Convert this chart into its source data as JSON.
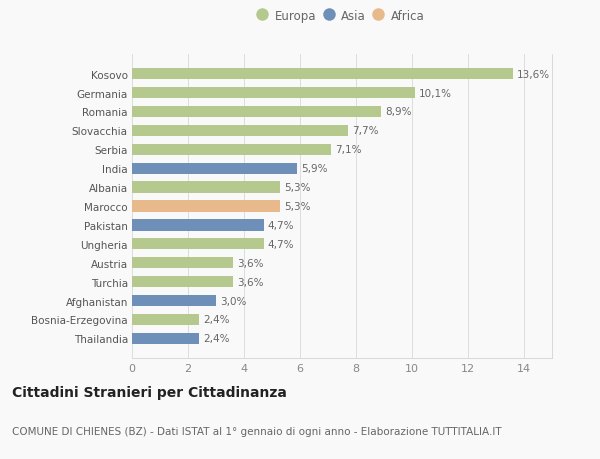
{
  "categories": [
    "Thailandia",
    "Bosnia-Erzegovina",
    "Afghanistan",
    "Turchia",
    "Austria",
    "Ungheria",
    "Pakistan",
    "Marocco",
    "Albania",
    "India",
    "Serbia",
    "Slovacchia",
    "Romania",
    "Germania",
    "Kosovo"
  ],
  "values": [
    2.4,
    2.4,
    3.0,
    3.6,
    3.6,
    4.7,
    4.7,
    5.3,
    5.3,
    5.9,
    7.1,
    7.7,
    8.9,
    10.1,
    13.6
  ],
  "labels": [
    "2,4%",
    "2,4%",
    "3,0%",
    "3,6%",
    "3,6%",
    "4,7%",
    "4,7%",
    "5,3%",
    "5,3%",
    "5,9%",
    "7,1%",
    "7,7%",
    "8,9%",
    "10,1%",
    "13,6%"
  ],
  "continents": [
    "Asia",
    "Europa",
    "Asia",
    "Europa",
    "Europa",
    "Europa",
    "Asia",
    "Africa",
    "Europa",
    "Asia",
    "Europa",
    "Europa",
    "Europa",
    "Europa",
    "Europa"
  ],
  "colors": {
    "Europa": "#b5c98e",
    "Asia": "#6d8fb8",
    "Africa": "#e8b98a"
  },
  "xlim": [
    0,
    15.0
  ],
  "xticks": [
    0,
    2,
    4,
    6,
    8,
    10,
    12,
    14
  ],
  "title": "Cittadini Stranieri per Cittadinanza",
  "subtitle": "COMUNE DI CHIENES (BZ) - Dati ISTAT al 1° gennaio di ogni anno - Elaborazione TUTTITALIA.IT",
  "background_color": "#f9f9f9",
  "bar_height": 0.6,
  "label_fontsize": 7.5,
  "ytick_fontsize": 7.5,
  "xtick_fontsize": 8,
  "title_fontsize": 10,
  "subtitle_fontsize": 7.5,
  "legend_fontsize": 8.5
}
